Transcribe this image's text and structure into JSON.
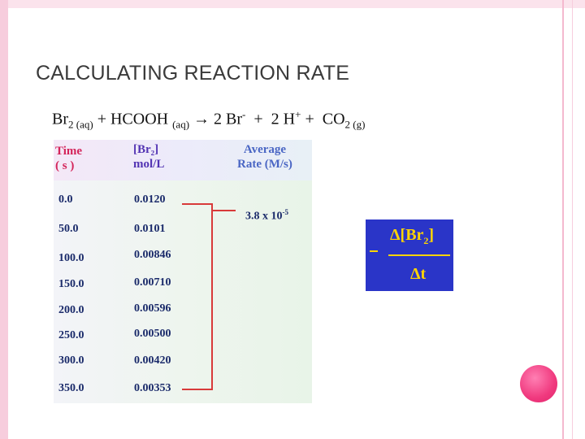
{
  "slide": {
    "title": "CALCULATING REACTION RATE"
  },
  "equation": {
    "br2": "Br",
    "br2_sub": "2 (aq)",
    "plus1": " + HCOOH ",
    "hcooh_sub": "(aq)",
    "arrow": " → ",
    "products_a": "2 Br",
    "br_charge": "-",
    "products_b": "  +  2 H",
    "h_charge": "+",
    "products_c": " +  CO",
    "co2_sub": "2 (g)"
  },
  "table": {
    "headers": {
      "time_line1": "Time",
      "time_line2": "( s )",
      "br2_line1": "[Br₂]",
      "br2_line2": "mol/L",
      "rate_line1": "Average",
      "rate_line2": "Rate (M/s)"
    },
    "rows": [
      {
        "time": "0.0",
        "br2": "0.0120"
      },
      {
        "time": "50.0",
        "br2": "0.0101"
      },
      {
        "time": "100.0",
        "br2": "0.00846"
      },
      {
        "time": "150.0",
        "br2": "0.00710"
      },
      {
        "time": "200.0",
        "br2": "0.00596"
      },
      {
        "time": "250.0",
        "br2": "0.00500"
      },
      {
        "time": "300.0",
        "br2": "0.00420"
      },
      {
        "time": "350.0",
        "br2": "0.00353"
      }
    ],
    "rate_value": "3.8 x 10",
    "rate_exp": "-5"
  },
  "formula": {
    "sign": "-",
    "numerator": "Δ[Br",
    "numerator_sub": "2",
    "numerator_close": "]",
    "denominator": "Δt"
  },
  "colors": {
    "frame_pink": "#f7cddd",
    "circle_pink": "#f0397e",
    "formula_bg": "#2a35c8",
    "formula_text": "#ffd400",
    "bracket_red": "#d83a3a"
  }
}
